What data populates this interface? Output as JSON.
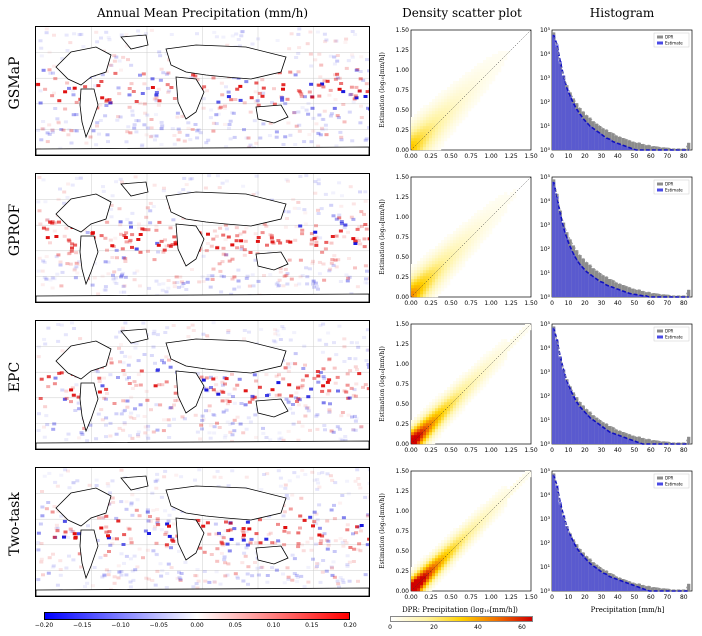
{
  "titles": {
    "maps": "Annual Mean Precipitation (mm/h)",
    "scatter": "Density scatter plot",
    "hist": "Histogram"
  },
  "rows": [
    "GSMaP",
    "GPROF",
    "EPC",
    "Two-task"
  ],
  "scatter_xlabel": "DPR: Precipitation (log₁₀[mm/h])",
  "scatter_ylabel": "Estimation (log₁₀[mm/h])",
  "hist_xlabel": "Precipitation [mm/h]",
  "colors": {
    "neg": "#1a1adf",
    "pos": "#e01010",
    "hist_dpr": "#8c8c8c",
    "hist_est": "#4a4ae6",
    "hist_line": "#1010c0"
  },
  "chart_data": [
    {
      "type": "heatmap",
      "title": "Annual Mean Precipitation (mm/h)",
      "panels": [
        "GSMaP",
        "GPROF",
        "EPC",
        "Two-task"
      ],
      "colorbar": {
        "colormap": "bwr",
        "ticks": [
          -0.2,
          -0.15,
          -0.1,
          -0.05,
          0.0,
          0.05,
          0.1,
          0.15,
          0.2
        ],
        "tick_labels": [
          "−0.20",
          "−0.15",
          "−0.10",
          "−0.05",
          "0.00",
          "0.05",
          "0.10",
          "0.15",
          "0.20"
        ],
        "range": [
          -0.2,
          0.2
        ]
      }
    },
    {
      "type": "heatmap",
      "title": "Density scatter plot",
      "xlabel": "DPR: Precipitation (log₁₀[mm/h])",
      "ylabel": "Estimation (log₁₀[mm/h])",
      "xlim": [
        0,
        1.5
      ],
      "ylim": [
        0,
        1.5
      ],
      "ticks": [
        0.0,
        0.25,
        0.5,
        0.75,
        1.0,
        1.25,
        1.5
      ],
      "tick_labels": [
        "0.00",
        "0.25",
        "0.50",
        "0.75",
        "1.00",
        "1.25",
        "1.50"
      ],
      "colorbar": {
        "ticks": [
          0,
          20,
          40,
          60
        ],
        "tick_labels": [
          "0",
          "20",
          "40",
          "60"
        ],
        "range": [
          0,
          65
        ]
      },
      "panels": [
        {
          "row": "GSMaP",
          "spread": 0.17,
          "peak": 0.35
        },
        {
          "row": "GPROF",
          "spread": 0.15,
          "peak": 0.45
        },
        {
          "row": "EPC",
          "spread": 0.11,
          "peak": 0.8
        },
        {
          "row": "Two-task",
          "spread": 0.1,
          "peak": 0.95
        }
      ]
    },
    {
      "type": "bar",
      "title": "Histogram",
      "xlabel": "Precipitation [mm/h]",
      "xlim": [
        0,
        85
      ],
      "x_ticks": [
        0,
        10,
        20,
        30,
        40,
        50,
        60,
        70,
        80
      ],
      "y_scale": "log",
      "y_ticks": [
        "10⁰",
        "10¹",
        "10²",
        "10³",
        "10⁴",
        "10⁵"
      ],
      "legend": {
        "entries": [
          "DPR",
          "Estimate"
        ],
        "placement": "top-right"
      },
      "bin_centers": [
        1,
        3,
        5,
        7,
        9,
        11,
        13,
        15,
        17,
        19,
        21,
        23,
        25,
        27,
        29,
        31,
        33,
        35,
        37,
        39,
        41,
        43,
        45,
        47,
        49,
        51,
        53,
        55,
        57,
        59,
        61,
        63,
        65,
        67,
        69,
        71,
        73,
        75,
        77,
        79,
        81,
        83
      ],
      "panels": [
        {
          "row": "GSMaP",
          "dpr_log10": [
            4.9,
            4.3,
            3.6,
            3.1,
            2.7,
            2.4,
            2.15,
            1.95,
            1.75,
            1.6,
            1.45,
            1.35,
            1.2,
            1.1,
            1.0,
            0.9,
            0.85,
            0.75,
            0.7,
            0.6,
            0.55,
            0.5,
            0.45,
            0.4,
            0.35,
            0.3,
            0.3,
            0.25,
            0.2,
            0.2,
            0.15,
            0.15,
            0.12,
            0.1,
            0.1,
            0.08,
            0.05,
            0.05,
            0.05,
            0.05,
            0.05,
            0.3
          ],
          "est_log10": [
            4.8,
            4.4,
            3.7,
            3.1,
            2.6,
            2.25,
            1.95,
            1.7,
            1.5,
            1.3,
            1.15,
            1.0,
            0.9,
            0.8,
            0.7,
            0.6,
            0.5,
            0.45,
            0.35,
            0.3,
            0.25,
            0.2,
            0.15,
            0.1,
            0.05,
            0,
            0,
            0,
            0,
            0,
            0,
            0,
            0,
            0,
            0,
            0,
            0,
            0,
            0,
            0,
            0,
            0
          ]
        },
        {
          "row": "GPROF",
          "dpr_log10": [
            4.9,
            4.3,
            3.6,
            3.1,
            2.7,
            2.4,
            2.15,
            1.95,
            1.75,
            1.6,
            1.45,
            1.35,
            1.2,
            1.1,
            1.0,
            0.9,
            0.85,
            0.75,
            0.7,
            0.6,
            0.55,
            0.5,
            0.45,
            0.4,
            0.35,
            0.3,
            0.3,
            0.25,
            0.2,
            0.2,
            0.15,
            0.15,
            0.12,
            0.1,
            0.1,
            0.08,
            0.05,
            0.05,
            0.05,
            0.05,
            0.05,
            0.3
          ],
          "est_log10": [
            4.8,
            4.2,
            3.5,
            2.9,
            2.45,
            2.1,
            1.8,
            1.55,
            1.35,
            1.2,
            1.05,
            0.95,
            0.85,
            0.75,
            0.65,
            0.6,
            0.5,
            0.45,
            0.4,
            0.35,
            0.3,
            0.25,
            0.2,
            0.15,
            0.12,
            0.1,
            0.08,
            0.05,
            0.05,
            0,
            0,
            0,
            0,
            0,
            0,
            0,
            0,
            0,
            0,
            0,
            0,
            0
          ]
        },
        {
          "row": "EPC",
          "dpr_log10": [
            4.9,
            4.3,
            3.6,
            3.1,
            2.7,
            2.4,
            2.15,
            1.95,
            1.75,
            1.6,
            1.45,
            1.35,
            1.2,
            1.1,
            1.0,
            0.9,
            0.85,
            0.75,
            0.7,
            0.6,
            0.55,
            0.5,
            0.45,
            0.4,
            0.35,
            0.3,
            0.3,
            0.25,
            0.2,
            0.2,
            0.15,
            0.15,
            0.12,
            0.1,
            0.1,
            0.08,
            0.05,
            0.05,
            0.05,
            0.05,
            0.05,
            0.3
          ],
          "est_log10": [
            4.85,
            4.35,
            3.65,
            3.1,
            2.65,
            2.3,
            2.0,
            1.75,
            1.55,
            1.4,
            1.25,
            1.1,
            1.0,
            0.9,
            0.8,
            0.7,
            0.6,
            0.5,
            0.45,
            0.4,
            0.35,
            0.3,
            0.25,
            0.2,
            0.15,
            0.1,
            0.05,
            0,
            0,
            0,
            0,
            0,
            0,
            0,
            0,
            0,
            0,
            0,
            0,
            0,
            0,
            0
          ]
        },
        {
          "row": "Two-task",
          "dpr_log10": [
            4.9,
            4.3,
            3.6,
            3.1,
            2.7,
            2.4,
            2.15,
            1.95,
            1.75,
            1.6,
            1.45,
            1.35,
            1.2,
            1.1,
            1.0,
            0.9,
            0.85,
            0.75,
            0.7,
            0.6,
            0.55,
            0.5,
            0.45,
            0.4,
            0.35,
            0.3,
            0.3,
            0.25,
            0.2,
            0.2,
            0.15,
            0.15,
            0.12,
            0.1,
            0.1,
            0.08,
            0.05,
            0.05,
            0.05,
            0.05,
            0.05,
            0.3
          ],
          "est_log10": [
            4.85,
            4.4,
            3.7,
            3.15,
            2.7,
            2.35,
            2.05,
            1.8,
            1.6,
            1.45,
            1.3,
            1.15,
            1.05,
            0.95,
            0.85,
            0.75,
            0.7,
            0.6,
            0.55,
            0.5,
            0.45,
            0.4,
            0.35,
            0.3,
            0.25,
            0.2,
            0.15,
            0.1,
            0.05,
            0,
            0,
            0,
            0,
            0,
            0,
            0,
            0,
            0,
            0,
            0,
            0,
            0
          ]
        }
      ]
    }
  ]
}
